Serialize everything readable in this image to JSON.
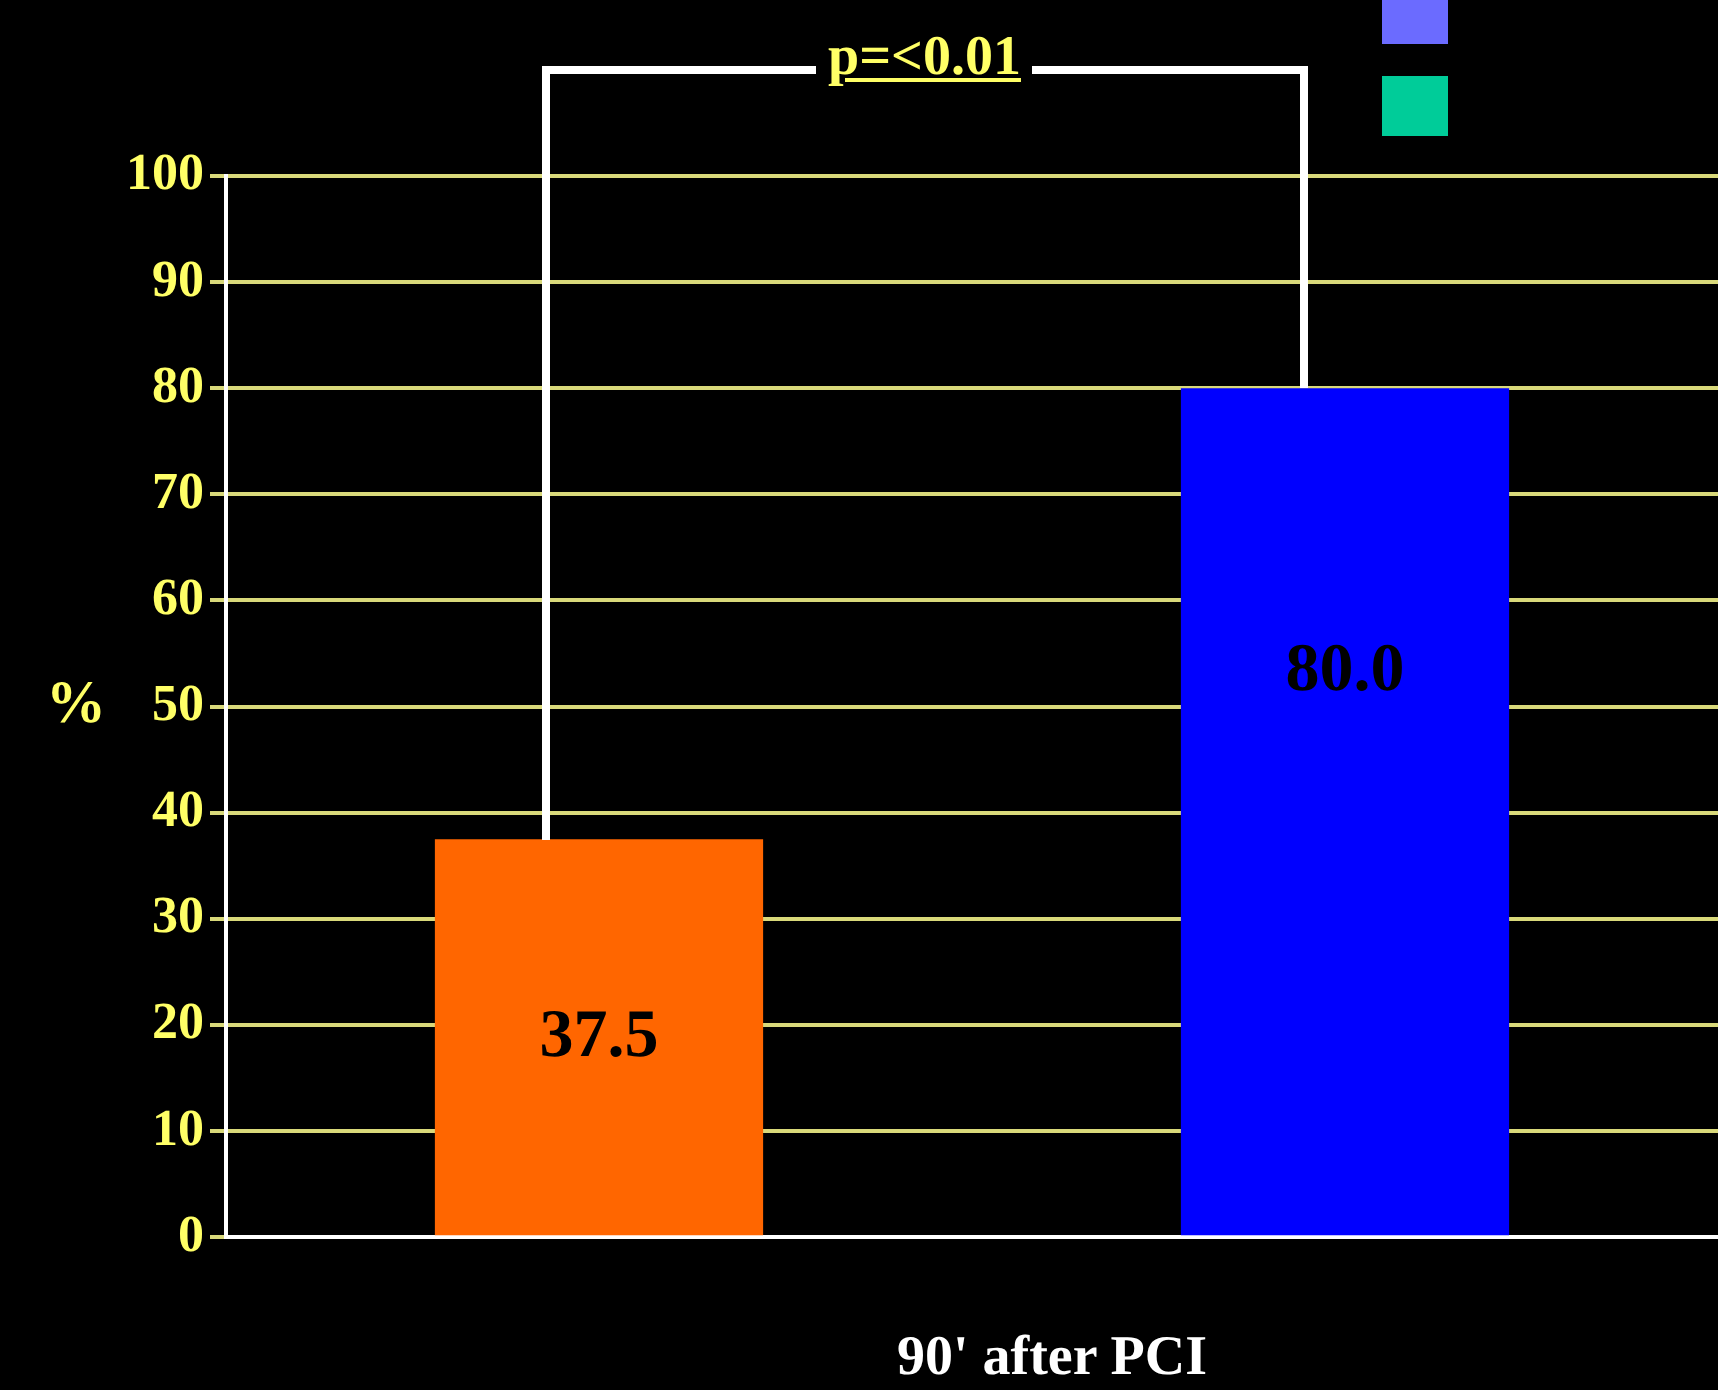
{
  "chart_data": {
    "type": "bar",
    "categories": [
      null,
      null
    ],
    "values": [
      37.5,
      80.0
    ],
    "colors": [
      "#ff6600",
      "#0000ff"
    ],
    "value_labels": [
      "37.5",
      "80.0"
    ],
    "xlabel": "90' after PCI",
    "ylabel": "%",
    "ylim": [
      0,
      100
    ],
    "yticks": [
      0,
      10,
      20,
      30,
      40,
      50,
      60,
      70,
      80,
      90,
      100
    ],
    "grid": "y",
    "legend": false,
    "annotations": [
      "p=<0.01"
    ]
  }
}
